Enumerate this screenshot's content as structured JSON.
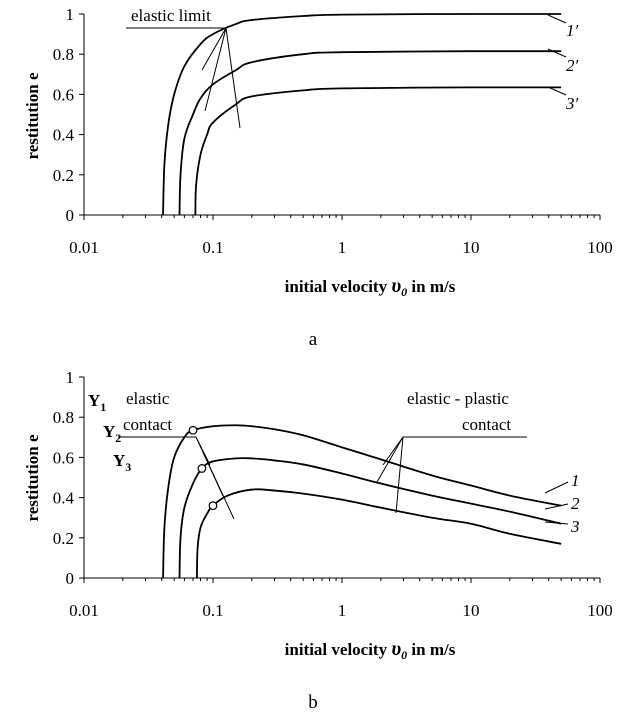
{
  "chart_data": [
    {
      "panel_label": "a",
      "type": "line",
      "xlabel_prefix": "initial velocity ",
      "xlabel_symbol": "υ",
      "xlabel_sub": "0",
      "xlabel_suffix": " in m/s",
      "ylabel": "restitution e",
      "xscale": "log",
      "xlim": [
        0.01,
        100
      ],
      "ylim": [
        0,
        1
      ],
      "x_ticks": [
        "0.01",
        "0.1",
        "1",
        "10",
        "100"
      ],
      "y_ticks": [
        "0",
        "0.2",
        "0.4",
        "0.6",
        "0.8",
        "1"
      ],
      "annotation": "elastic limit",
      "series": [
        {
          "name": "1′",
          "values": [
            [
              0.041,
              0
            ],
            [
              0.042,
              0.25
            ],
            [
              0.045,
              0.45
            ],
            [
              0.05,
              0.6
            ],
            [
              0.06,
              0.74
            ],
            [
              0.08,
              0.85
            ],
            [
              0.1,
              0.9
            ],
            [
              0.15,
              0.95
            ],
            [
              0.2,
              0.97
            ],
            [
              0.5,
              0.99
            ],
            [
              1,
              0.997
            ],
            [
              10,
              1
            ],
            [
              50,
              1
            ]
          ]
        },
        {
          "name": "2′",
          "values": [
            [
              0.055,
              0
            ],
            [
              0.056,
              0.2
            ],
            [
              0.06,
              0.38
            ],
            [
              0.07,
              0.5
            ],
            [
              0.08,
              0.58
            ],
            [
              0.1,
              0.65
            ],
            [
              0.15,
              0.72
            ],
            [
              0.2,
              0.76
            ],
            [
              0.5,
              0.8
            ],
            [
              1,
              0.81
            ],
            [
              10,
              0.815
            ],
            [
              50,
              0.815
            ]
          ]
        },
        {
          "name": "3′",
          "values": [
            [
              0.073,
              0
            ],
            [
              0.074,
              0.15
            ],
            [
              0.08,
              0.3
            ],
            [
              0.09,
              0.4
            ],
            [
              0.1,
              0.46
            ],
            [
              0.15,
              0.55
            ],
            [
              0.2,
              0.59
            ],
            [
              0.5,
              0.62
            ],
            [
              1,
              0.63
            ],
            [
              10,
              0.635
            ],
            [
              50,
              0.635
            ]
          ]
        }
      ]
    },
    {
      "panel_label": "b",
      "type": "line",
      "xlabel_prefix": "initial velocity ",
      "xlabel_symbol": "υ",
      "xlabel_sub": "0",
      "xlabel_suffix": " in m/s",
      "ylabel": "restitution e",
      "xscale": "log",
      "xlim": [
        0.01,
        100
      ],
      "ylim": [
        0,
        1
      ],
      "x_ticks": [
        "0.01",
        "0.1",
        "1",
        "10",
        "100"
      ],
      "y_ticks": [
        "0",
        "0.2",
        "0.4",
        "0.6",
        "0.8",
        "1"
      ],
      "annotations": [
        {
          "lines": [
            "elastic",
            "contact"
          ]
        },
        {
          "lines": [
            "elastic - plastic",
            "contact"
          ]
        }
      ],
      "yield_points": [
        {
          "label": "Y",
          "sub": "1",
          "x": 0.07,
          "y": 0.735
        },
        {
          "label": "Y",
          "sub": "2",
          "x": 0.082,
          "y": 0.545
        },
        {
          "label": "Y",
          "sub": "3",
          "x": 0.1,
          "y": 0.36
        }
      ],
      "series": [
        {
          "name": "1",
          "values": [
            [
              0.041,
              0
            ],
            [
              0.042,
              0.25
            ],
            [
              0.045,
              0.45
            ],
            [
              0.05,
              0.6
            ],
            [
              0.06,
              0.7
            ],
            [
              0.07,
              0.735
            ],
            [
              0.1,
              0.755
            ],
            [
              0.15,
              0.76
            ],
            [
              0.2,
              0.755
            ],
            [
              0.3,
              0.74
            ],
            [
              0.5,
              0.71
            ],
            [
              1,
              0.65
            ],
            [
              2,
              0.59
            ],
            [
              5,
              0.51
            ],
            [
              10,
              0.46
            ],
            [
              20,
              0.41
            ],
            [
              50,
              0.36
            ]
          ]
        },
        {
          "name": "2",
          "values": [
            [
              0.055,
              0
            ],
            [
              0.056,
              0.2
            ],
            [
              0.06,
              0.35
            ],
            [
              0.07,
              0.47
            ],
            [
              0.082,
              0.545
            ],
            [
              0.1,
              0.58
            ],
            [
              0.15,
              0.595
            ],
            [
              0.2,
              0.595
            ],
            [
              0.3,
              0.585
            ],
            [
              0.5,
              0.565
            ],
            [
              1,
              0.52
            ],
            [
              2,
              0.47
            ],
            [
              5,
              0.41
            ],
            [
              10,
              0.37
            ],
            [
              20,
              0.33
            ],
            [
              50,
              0.27
            ]
          ]
        },
        {
          "name": "3",
          "values": [
            [
              0.075,
              0
            ],
            [
              0.076,
              0.15
            ],
            [
              0.08,
              0.25
            ],
            [
              0.09,
              0.32
            ],
            [
              0.1,
              0.36
            ],
            [
              0.13,
              0.41
            ],
            [
              0.2,
              0.44
            ],
            [
              0.3,
              0.435
            ],
            [
              0.5,
              0.42
            ],
            [
              1,
              0.39
            ],
            [
              2,
              0.35
            ],
            [
              5,
              0.3
            ],
            [
              10,
              0.27
            ],
            [
              20,
              0.22
            ],
            [
              50,
              0.17
            ]
          ]
        }
      ]
    }
  ]
}
